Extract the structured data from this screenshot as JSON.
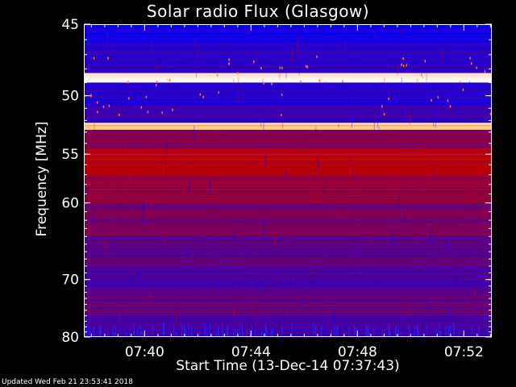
{
  "chart_data": {
    "type": "heatmap",
    "title": "Solar radio Flux (Glasgow)",
    "xlabel": "Start Time (13-Dec-14 07:37:43)",
    "ylabel": "Frequency [MHz]",
    "xlim": [
      "07:37:43",
      "07:53:03"
    ],
    "ylim": [
      45,
      80
    ],
    "y_axis_inverted": true,
    "x_ticks": [
      "07:40",
      "07:44",
      "07:48",
      "07:52"
    ],
    "y_ticks": [
      45,
      50,
      55,
      60,
      70,
      80
    ],
    "colormap": "blue-red-white",
    "colors": {
      "low": "#0000ff",
      "mid": "#c00000",
      "high": "#ffffff",
      "background": "#000000"
    },
    "bands": [
      {
        "from": 45.0,
        "to": 46.2,
        "level": 0.12
      },
      {
        "from": 46.2,
        "to": 48.3,
        "level": 0.22
      },
      {
        "from": 48.3,
        "to": 49.0,
        "level": 1.0
      },
      {
        "from": 49.0,
        "to": 50.8,
        "level": 0.2
      },
      {
        "from": 50.8,
        "to": 52.2,
        "level": 0.28
      },
      {
        "from": 52.2,
        "to": 52.8,
        "level": 0.95
      },
      {
        "from": 52.8,
        "to": 54.5,
        "level": 0.5
      },
      {
        "from": 54.5,
        "to": 57.0,
        "level": 0.66
      },
      {
        "from": 57.0,
        "to": 60.0,
        "level": 0.55
      },
      {
        "from": 60.0,
        "to": 64.0,
        "level": 0.46
      },
      {
        "from": 64.0,
        "to": 68.0,
        "level": 0.38
      },
      {
        "from": 68.0,
        "to": 72.0,
        "level": 0.33
      },
      {
        "from": 72.0,
        "to": 76.0,
        "level": 0.4
      },
      {
        "from": 76.0,
        "to": 80.0,
        "level": 0.3
      }
    ]
  },
  "footer": {
    "updated": "Updated Wed Feb 21 23:53:41 2018"
  }
}
